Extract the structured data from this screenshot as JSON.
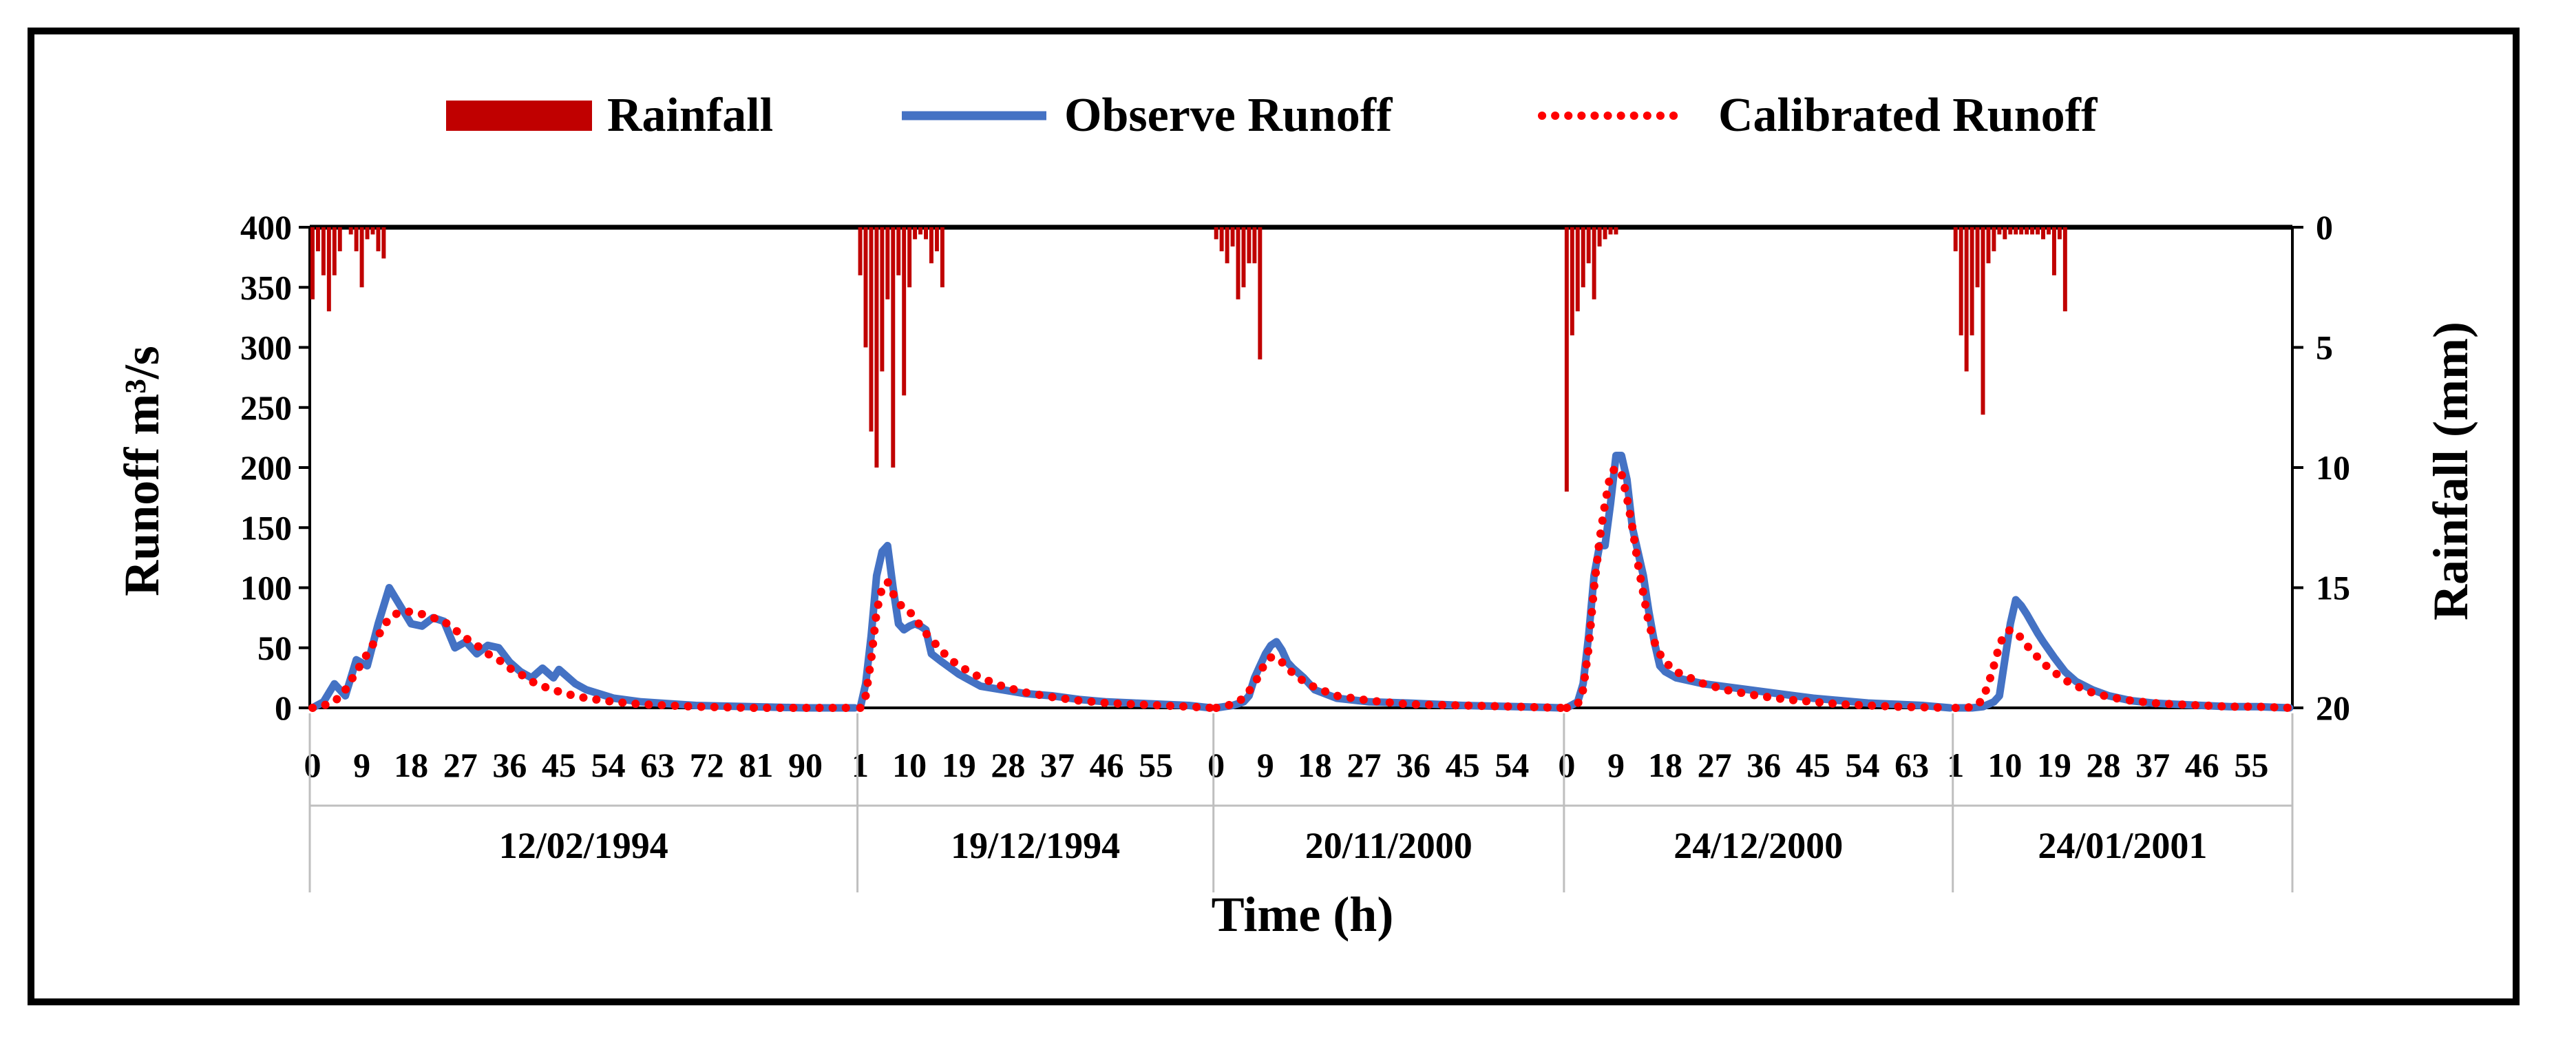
{
  "chart_data": {
    "type": "bar+line",
    "title": "",
    "xlabel": "Time (h)",
    "ylabel_left": "Runoff m³/s",
    "ylabel_right": "Rainfall (mm)",
    "ylim_left": [
      0,
      400
    ],
    "ylim_right": [
      20,
      0
    ],
    "yticks_left": [
      "0",
      "50",
      "100",
      "150",
      "200",
      "250",
      "300",
      "350",
      "400"
    ],
    "yticks_right": [
      "0",
      "5",
      "10",
      "15",
      "20"
    ],
    "legend": {
      "position": "top",
      "entries": [
        {
          "name": "Rainfall",
          "type": "bar",
          "color": "#c00000"
        },
        {
          "name": "Observe Runoff",
          "type": "line",
          "color": "#4472c4"
        },
        {
          "name": "Calibrated Runoff",
          "type": "dotted",
          "color": "#ff0000"
        }
      ]
    },
    "events": [
      {
        "date": "12/02/1994",
        "n": 100,
        "tick_labels": [
          "0",
          "9",
          "18",
          "27",
          "36",
          "45",
          "54",
          "63",
          "72",
          "81",
          "90"
        ],
        "rain_hours": [
          0,
          1,
          2,
          3,
          4,
          5,
          7,
          8,
          9,
          10,
          11,
          12,
          13
        ],
        "rain_mm": [
          3.0,
          1.0,
          2.0,
          3.5,
          2.0,
          1.0,
          0.3,
          1.0,
          2.5,
          0.5,
          0.3,
          1.0,
          1.3
        ],
        "observed": [
          [
            0,
            0
          ],
          [
            2,
            5
          ],
          [
            4,
            20
          ],
          [
            6,
            10
          ],
          [
            8,
            40
          ],
          [
            10,
            35
          ],
          [
            12,
            70
          ],
          [
            14,
            100
          ],
          [
            16,
            85
          ],
          [
            18,
            70
          ],
          [
            20,
            68
          ],
          [
            22,
            75
          ],
          [
            24,
            72
          ],
          [
            26,
            50
          ],
          [
            28,
            55
          ],
          [
            30,
            45
          ],
          [
            32,
            52
          ],
          [
            34,
            50
          ],
          [
            36,
            38
          ],
          [
            38,
            30
          ],
          [
            40,
            25
          ],
          [
            42,
            33
          ],
          [
            44,
            25
          ],
          [
            45,
            32
          ],
          [
            48,
            20
          ],
          [
            50,
            15
          ],
          [
            55,
            8
          ],
          [
            60,
            5
          ],
          [
            70,
            2
          ],
          [
            80,
            1
          ],
          [
            90,
            0
          ],
          [
            95,
            0
          ],
          [
            99,
            0
          ]
        ],
        "calibrated": [
          [
            0,
            0
          ],
          [
            2,
            2
          ],
          [
            4,
            5
          ],
          [
            6,
            15
          ],
          [
            8,
            30
          ],
          [
            10,
            45
          ],
          [
            12,
            60
          ],
          [
            14,
            75
          ],
          [
            16,
            80
          ],
          [
            18,
            80
          ],
          [
            20,
            78
          ],
          [
            22,
            75
          ],
          [
            24,
            72
          ],
          [
            26,
            65
          ],
          [
            28,
            58
          ],
          [
            30,
            52
          ],
          [
            32,
            45
          ],
          [
            34,
            40
          ],
          [
            36,
            33
          ],
          [
            38,
            28
          ],
          [
            40,
            22
          ],
          [
            42,
            18
          ],
          [
            44,
            15
          ],
          [
            46,
            12
          ],
          [
            50,
            8
          ],
          [
            55,
            5
          ],
          [
            60,
            3
          ],
          [
            70,
            1
          ],
          [
            80,
            0
          ],
          [
            90,
            0
          ],
          [
            99,
            0
          ]
        ]
      },
      {
        "date": "19/12/1994",
        "n": 65,
        "tick_labels": [
          "1",
          "10",
          "19",
          "28",
          "37",
          "46",
          "55"
        ],
        "rain_hours": [
          0,
          1,
          2,
          3,
          4,
          5,
          6,
          7,
          8,
          9,
          10,
          11,
          12,
          13,
          14,
          15
        ],
        "rain_mm": [
          2.0,
          5.0,
          8.5,
          10.0,
          6.0,
          3.0,
          10.0,
          2.0,
          7.0,
          2.5,
          0.5,
          0.3,
          0.5,
          1.5,
          1.0,
          2.5
        ],
        "observed": [
          [
            0,
            0
          ],
          [
            1,
            20
          ],
          [
            2,
            60
          ],
          [
            3,
            110
          ],
          [
            4,
            130
          ],
          [
            5,
            135
          ],
          [
            6,
            100
          ],
          [
            7,
            70
          ],
          [
            8,
            65
          ],
          [
            9,
            68
          ],
          [
            10,
            70
          ],
          [
            11,
            68
          ],
          [
            12,
            65
          ],
          [
            13,
            45
          ],
          [
            15,
            38
          ],
          [
            18,
            28
          ],
          [
            22,
            18
          ],
          [
            26,
            15
          ],
          [
            30,
            12
          ],
          [
            35,
            10
          ],
          [
            40,
            7
          ],
          [
            45,
            5
          ],
          [
            50,
            4
          ],
          [
            55,
            3
          ],
          [
            60,
            2
          ],
          [
            64,
            0
          ]
        ],
        "calibrated": [
          [
            0,
            0
          ],
          [
            1,
            10
          ],
          [
            2,
            40
          ],
          [
            3,
            80
          ],
          [
            4,
            100
          ],
          [
            5,
            105
          ],
          [
            6,
            95
          ],
          [
            7,
            88
          ],
          [
            8,
            82
          ],
          [
            9,
            80
          ],
          [
            10,
            75
          ],
          [
            11,
            68
          ],
          [
            12,
            62
          ],
          [
            14,
            52
          ],
          [
            16,
            42
          ],
          [
            18,
            35
          ],
          [
            22,
            25
          ],
          [
            26,
            18
          ],
          [
            30,
            13
          ],
          [
            35,
            9
          ],
          [
            40,
            6
          ],
          [
            45,
            4
          ],
          [
            50,
            3
          ],
          [
            55,
            2
          ],
          [
            60,
            1
          ],
          [
            64,
            0
          ]
        ]
      },
      {
        "date": "20/11/2000",
        "n": 64,
        "tick_labels": [
          "0",
          "9",
          "18",
          "27",
          "36",
          "45",
          "54"
        ],
        "rain_hours": [
          0,
          1,
          2,
          3,
          4,
          5,
          6,
          7,
          8
        ],
        "rain_mm": [
          0.5,
          1.0,
          1.5,
          0.8,
          3.0,
          2.5,
          1.5,
          1.5,
          5.5
        ],
        "observed": [
          [
            0,
            0
          ],
          [
            3,
            2
          ],
          [
            5,
            5
          ],
          [
            6,
            10
          ],
          [
            7,
            25
          ],
          [
            8,
            35
          ],
          [
            9,
            45
          ],
          [
            10,
            52
          ],
          [
            11,
            55
          ],
          [
            12,
            48
          ],
          [
            13,
            38
          ],
          [
            14,
            33
          ],
          [
            16,
            25
          ],
          [
            18,
            15
          ],
          [
            22,
            8
          ],
          [
            28,
            5
          ],
          [
            35,
            4
          ],
          [
            45,
            2
          ],
          [
            55,
            1
          ],
          [
            63,
            0
          ]
        ],
        "calibrated": [
          [
            0,
            0
          ],
          [
            3,
            3
          ],
          [
            5,
            8
          ],
          [
            7,
            20
          ],
          [
            9,
            38
          ],
          [
            10,
            42
          ],
          [
            11,
            42
          ],
          [
            12,
            38
          ],
          [
            13,
            33
          ],
          [
            15,
            25
          ],
          [
            18,
            17
          ],
          [
            22,
            10
          ],
          [
            28,
            6
          ],
          [
            35,
            3
          ],
          [
            45,
            2
          ],
          [
            55,
            1
          ],
          [
            63,
            0
          ]
        ]
      },
      {
        "date": "24/12/2000",
        "n": 71,
        "tick_labels": [
          "0",
          "9",
          "18",
          "27",
          "36",
          "45",
          "54",
          "63"
        ],
        "rain_hours": [
          0,
          1,
          2,
          3,
          4,
          5,
          6,
          7,
          8,
          9
        ],
        "rain_mm": [
          11.0,
          4.5,
          3.5,
          2.5,
          1.5,
          3.0,
          0.8,
          0.5,
          0.3,
          0.3
        ],
        "observed": [
          [
            0,
            0
          ],
          [
            2,
            5
          ],
          [
            3,
            20
          ],
          [
            4,
            60
          ],
          [
            5,
            110
          ],
          [
            6,
            135
          ],
          [
            7,
            135
          ],
          [
            8,
            170
          ],
          [
            9,
            210
          ],
          [
            10,
            210
          ],
          [
            11,
            190
          ],
          [
            12,
            150
          ],
          [
            13,
            130
          ],
          [
            14,
            110
          ],
          [
            15,
            80
          ],
          [
            16,
            55
          ],
          [
            17,
            35
          ],
          [
            18,
            30
          ],
          [
            20,
            25
          ],
          [
            25,
            20
          ],
          [
            30,
            17
          ],
          [
            35,
            14
          ],
          [
            40,
            11
          ],
          [
            45,
            8
          ],
          [
            50,
            6
          ],
          [
            55,
            4
          ],
          [
            60,
            3
          ],
          [
            65,
            2
          ],
          [
            70,
            0
          ]
        ],
        "calibrated": [
          [
            0,
            0
          ],
          [
            2,
            3
          ],
          [
            3,
            15
          ],
          [
            4,
            50
          ],
          [
            5,
            100
          ],
          [
            6,
            140
          ],
          [
            7,
            170
          ],
          [
            8,
            195
          ],
          [
            9,
            200
          ],
          [
            10,
            195
          ],
          [
            11,
            175
          ],
          [
            12,
            150
          ],
          [
            13,
            120
          ],
          [
            14,
            95
          ],
          [
            15,
            70
          ],
          [
            16,
            55
          ],
          [
            17,
            45
          ],
          [
            18,
            38
          ],
          [
            20,
            30
          ],
          [
            25,
            20
          ],
          [
            30,
            14
          ],
          [
            35,
            10
          ],
          [
            40,
            7
          ],
          [
            45,
            5
          ],
          [
            50,
            3
          ],
          [
            55,
            2
          ],
          [
            60,
            1
          ],
          [
            70,
            0
          ]
        ]
      },
      {
        "date": "24/01/2001",
        "n": 62,
        "tick_labels": [
          "1",
          "10",
          "19",
          "28",
          "37",
          "46",
          "55"
        ],
        "rain_hours": [
          0,
          1,
          2,
          3,
          4,
          5,
          6,
          7,
          8,
          9,
          10,
          11,
          12,
          13,
          14,
          15,
          16,
          17,
          18,
          19,
          20
        ],
        "rain_mm": [
          1.0,
          4.5,
          6.0,
          4.5,
          2.5,
          7.8,
          1.5,
          1.0,
          0.3,
          0.5,
          0.3,
          0.3,
          0.3,
          0.3,
          0.3,
          0.3,
          0.5,
          0.3,
          2.0,
          0.5,
          3.5
        ],
        "observed": [
          [
            0,
            0
          ],
          [
            3,
            0
          ],
          [
            5,
            1
          ],
          [
            6,
            3
          ],
          [
            7,
            5
          ],
          [
            8,
            10
          ],
          [
            9,
            40
          ],
          [
            10,
            70
          ],
          [
            11,
            90
          ],
          [
            12,
            85
          ],
          [
            13,
            78
          ],
          [
            14,
            70
          ],
          [
            15,
            62
          ],
          [
            16,
            55
          ],
          [
            18,
            42
          ],
          [
            20,
            30
          ],
          [
            22,
            22
          ],
          [
            25,
            15
          ],
          [
            28,
            10
          ],
          [
            32,
            6
          ],
          [
            36,
            4
          ],
          [
            40,
            3
          ],
          [
            45,
            2
          ],
          [
            50,
            1
          ],
          [
            55,
            1
          ],
          [
            61,
            0
          ]
        ],
        "calibrated": [
          [
            0,
            0
          ],
          [
            2,
            0
          ],
          [
            4,
            2
          ],
          [
            5,
            8
          ],
          [
            6,
            20
          ],
          [
            7,
            35
          ],
          [
            8,
            52
          ],
          [
            9,
            62
          ],
          [
            10,
            65
          ],
          [
            11,
            63
          ],
          [
            12,
            58
          ],
          [
            13,
            52
          ],
          [
            15,
            42
          ],
          [
            17,
            33
          ],
          [
            20,
            23
          ],
          [
            24,
            14
          ],
          [
            28,
            9
          ],
          [
            32,
            6
          ],
          [
            36,
            4
          ],
          [
            40,
            3
          ],
          [
            45,
            2
          ],
          [
            50,
            1
          ],
          [
            55,
            1
          ],
          [
            61,
            0
          ]
        ]
      }
    ]
  }
}
